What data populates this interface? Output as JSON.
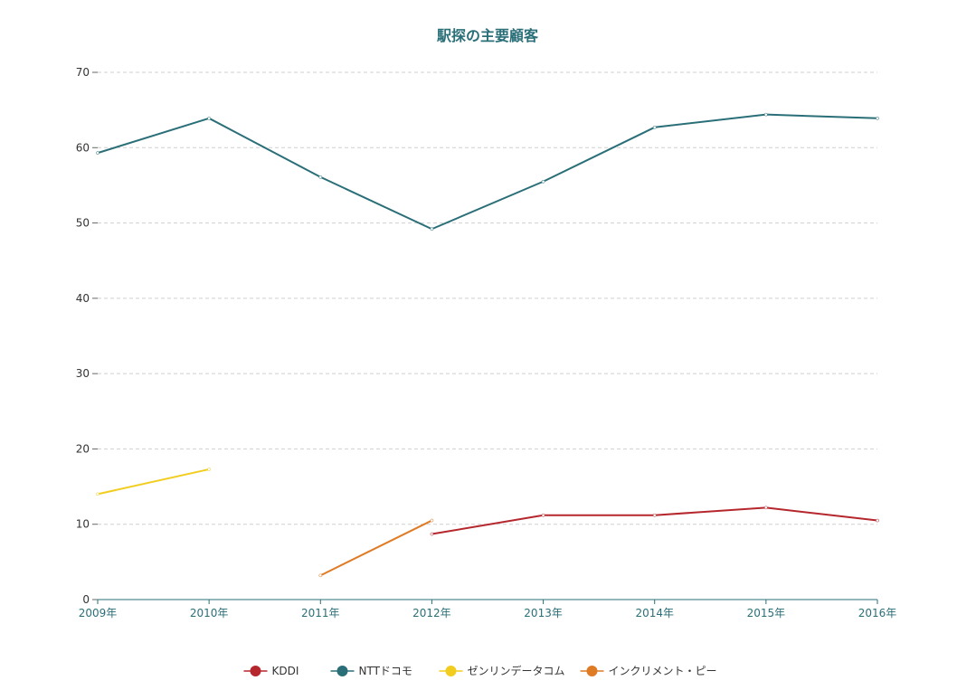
{
  "chart_data": {
    "type": "line",
    "title": "駅探の主要顧客",
    "categories": [
      "2009年",
      "2010年",
      "2011年",
      "2012年",
      "2013年",
      "2014年",
      "2015年",
      "2016年"
    ],
    "ylim": [
      0,
      70
    ],
    "yticks": [
      "0",
      "10",
      "20",
      "30",
      "40",
      "50",
      "60",
      "70"
    ],
    "grid": true,
    "legend_position": "bottom",
    "series": [
      {
        "name": "KDDI",
        "color": "#b5272d",
        "values": [
          null,
          null,
          null,
          8.7,
          11.2,
          11.2,
          12.2,
          10.5
        ]
      },
      {
        "name": "NTTドコモ",
        "color": "#2a6f78",
        "values": [
          59.3,
          63.9,
          56.1,
          49.2,
          55.5,
          62.7,
          64.4,
          63.9
        ]
      },
      {
        "name": "ゼンリンデータコム",
        "color": "#f2cd1f",
        "values": [
          14.0,
          17.3,
          null,
          null,
          null,
          null,
          null,
          null
        ]
      },
      {
        "name": "インクリメント・ピー",
        "color": "#e07b25",
        "values": [
          null,
          null,
          3.2,
          10.5,
          null,
          null,
          null,
          null
        ]
      }
    ]
  }
}
